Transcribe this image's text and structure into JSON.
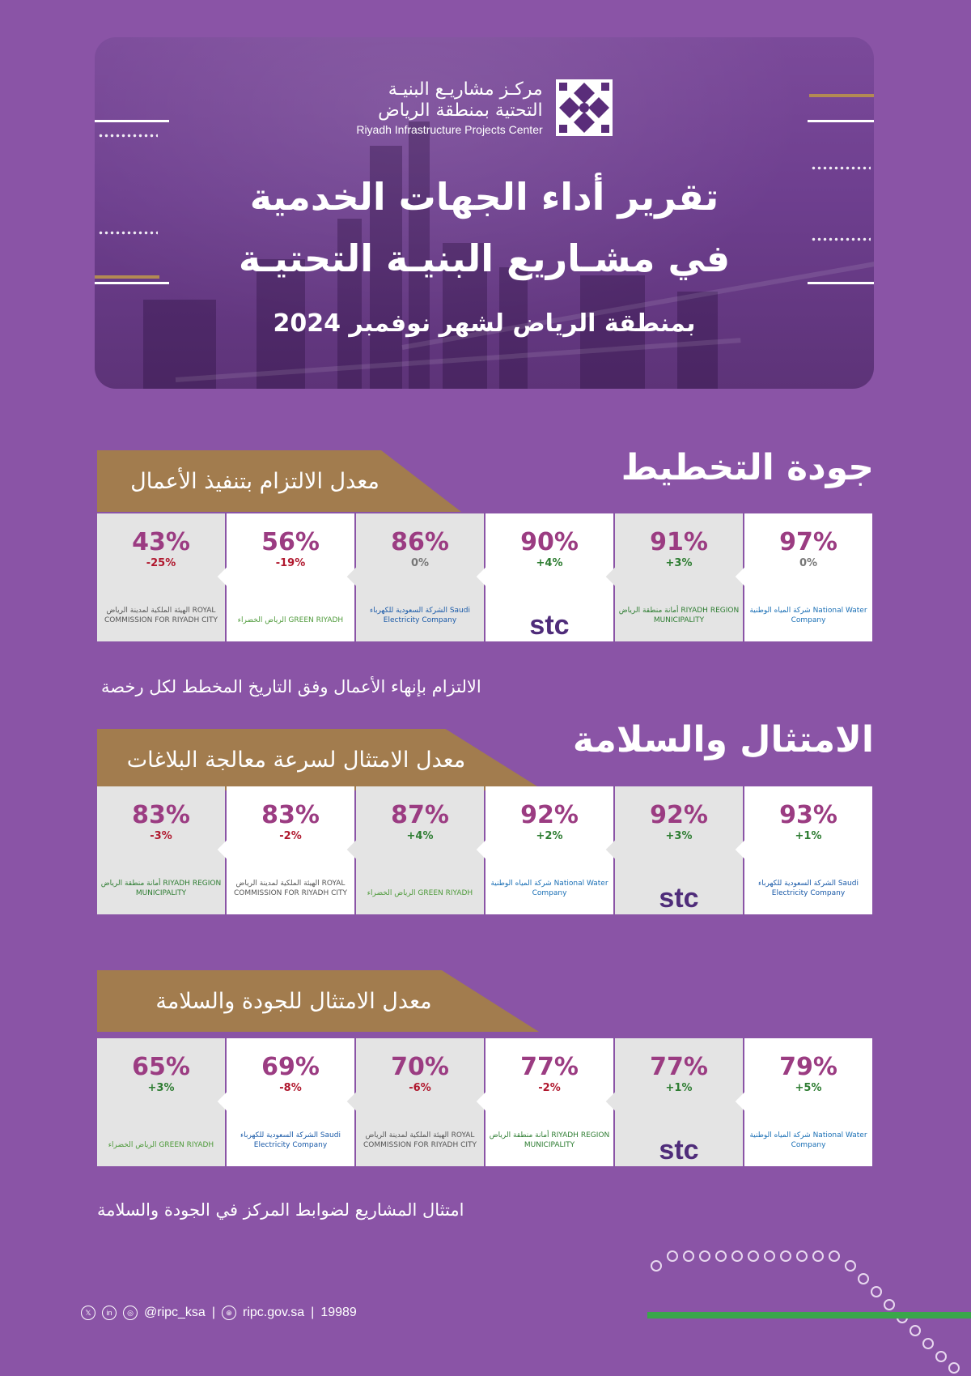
{
  "hero": {
    "logo_ar_line1": "مركـز مشاريـع البنيـة",
    "logo_ar_line2": "التحتية بمنطقة الرياض",
    "logo_en": "Riyadh Infrastructure Projects Center",
    "title_line1": "تقرير أداء الجهات الخدمية",
    "title_line2": "في مشـاريع البنيـة التحتيـة",
    "subtitle": "بمنطقة الرياض لشهر نوفمبر 2024"
  },
  "sections": {
    "planning": {
      "title": "جودة التخطيط",
      "banner": "معدل الالتزام بتنفيذ الأعمال",
      "caption": "الالتزام بإنهاء الأعمال وفق التاريخ المخطط لكل رخصة",
      "cards": [
        {
          "pct": "97%",
          "chg": "0%",
          "org": "شركة المياه الوطنية National Water Company"
        },
        {
          "pct": "91%",
          "chg": "+3%",
          "org": "أمانة منطقة الرياض RIYADH REGION MUNICIPALITY"
        },
        {
          "pct": "90%",
          "chg": "+4%",
          "org": "stc"
        },
        {
          "pct": "86%",
          "chg": "0%",
          "org": "الشركة السعودية للكهرباء Saudi Electricity Company"
        },
        {
          "pct": "56%",
          "chg": "-19%",
          "org": "الرياض الخضراء GREEN RIYADH"
        },
        {
          "pct": "43%",
          "chg": "-25%",
          "org": "الهيئة الملكية لمدينة الرياض ROYAL COMMISSION FOR RIYADH CITY"
        }
      ]
    },
    "compliance": {
      "title": "الامتثال والسلامة",
      "banner": "معدل الامتثال لسرعة معالجة البلاغات",
      "cards": [
        {
          "pct": "93%",
          "chg": "+1%",
          "org": "الشركة السعودية للكهرباء Saudi Electricity Company"
        },
        {
          "pct": "92%",
          "chg": "+3%",
          "org": "stc"
        },
        {
          "pct": "92%",
          "chg": "+2%",
          "org": "شركة المياه الوطنية National Water Company"
        },
        {
          "pct": "87%",
          "chg": "+4%",
          "org": "الرياض الخضراء GREEN RIYADH"
        },
        {
          "pct": "83%",
          "chg": "-2%",
          "org": "الهيئة الملكية لمدينة الرياض ROYAL COMMISSION FOR RIYADH CITY"
        },
        {
          "pct": "83%",
          "chg": "-3%",
          "org": "أمانة منطقة الرياض RIYADH REGION MUNICIPALITY"
        }
      ]
    },
    "quality": {
      "banner": "معدل الامتثال للجودة والسلامة",
      "caption": "امتثال المشاريع لضوابط المركز في الجودة والسلامة",
      "cards": [
        {
          "pct": "79%",
          "chg": "+5%",
          "org": "شركة المياه الوطنية National Water Company"
        },
        {
          "pct": "77%",
          "chg": "+1%",
          "org": "stc"
        },
        {
          "pct": "77%",
          "chg": "-2%",
          "org": "أمانة منطقة الرياض RIYADH REGION MUNICIPALITY"
        },
        {
          "pct": "70%",
          "chg": "-6%",
          "org": "الهيئة الملكية لمدينة الرياض ROYAL COMMISSION FOR RIYADH CITY"
        },
        {
          "pct": "69%",
          "chg": "-8%",
          "org": "الشركة السعودية للكهرباء Saudi Electricity Company"
        },
        {
          "pct": "65%",
          "chg": "+3%",
          "org": "الرياض الخضراء GREEN RIYADH"
        }
      ]
    }
  },
  "footer": {
    "social": "@ripc_ksa",
    "website": "ripc.gov.sa",
    "phone": "19989"
  },
  "colors": {
    "background": "#8a54a6",
    "banner": "#a27c4e",
    "percent": "#9b3c82",
    "negative": "#b0182e",
    "positive": "#2e7d32"
  }
}
